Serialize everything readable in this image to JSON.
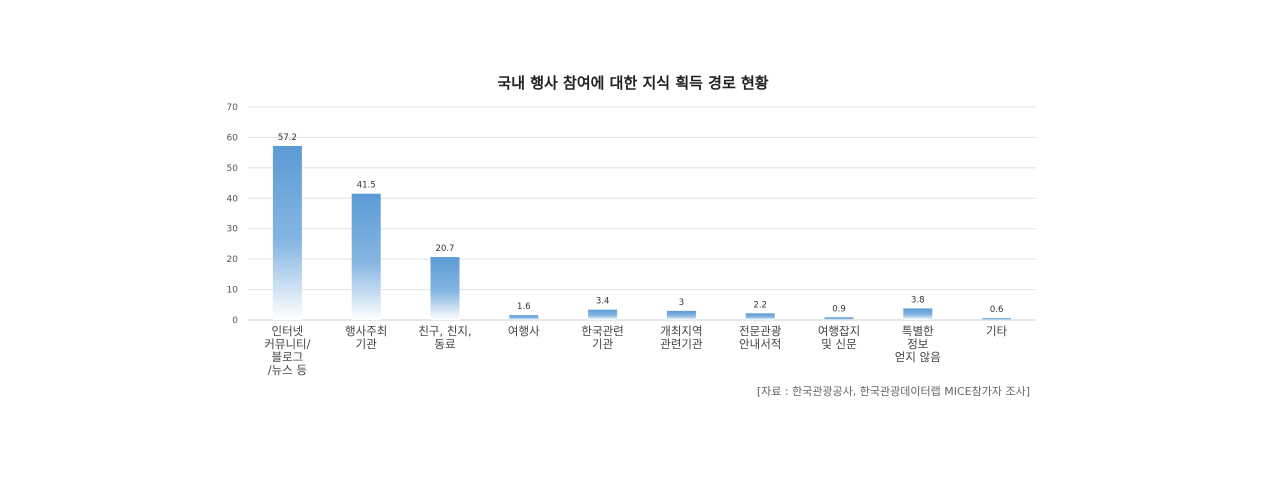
{
  "chart_data": {
    "type": "bar",
    "title": "국내 행사 참여에 대한 지식 획득 경로 현황",
    "categories": [
      [
        "인터넷",
        "커뮤니티/",
        "블로그",
        "/뉴스 등"
      ],
      [
        "행사주최",
        "기관"
      ],
      [
        "친구, 친지,",
        "동료"
      ],
      [
        "여행사"
      ],
      [
        "한국관련",
        "기관"
      ],
      [
        "개최지역",
        "관련기관"
      ],
      [
        "전문관광",
        "안내서적"
      ],
      [
        "여행잡지",
        "및 신문"
      ],
      [
        "특별한",
        "정보",
        "얻지 않음"
      ],
      [
        "기타"
      ]
    ],
    "values": [
      57.2,
      41.5,
      20.7,
      1.6,
      3.4,
      3,
      2.2,
      0.9,
      3.8,
      0.6
    ],
    "value_labels": [
      "57.2",
      "41.5",
      "20.7",
      "1.6",
      "3.4",
      "3",
      "2.2",
      "0.9",
      "3.8",
      "0.6"
    ],
    "ylim": [
      0,
      70
    ],
    "yticks": [
      "0",
      "10",
      "20",
      "30",
      "40",
      "50",
      "60",
      "70"
    ],
    "grid": true,
    "legend": "none",
    "bar_color": "#5b9bd5",
    "source": "[자료 : 한국관광공사, 한국관광데이터랩 MICE참가자 조사]"
  }
}
